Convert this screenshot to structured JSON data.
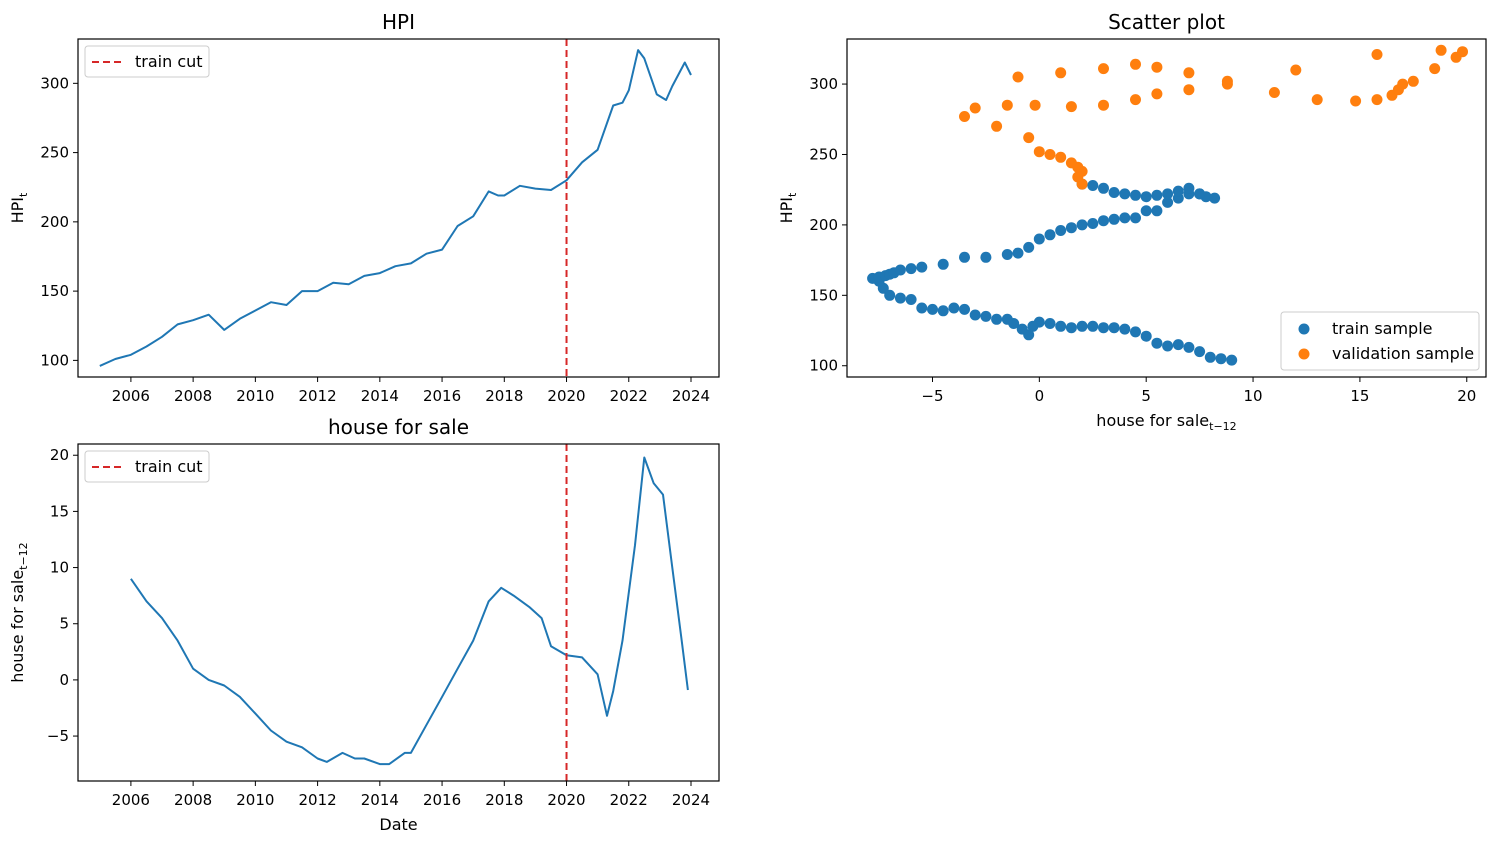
{
  "figure": {
    "panels": [
      "HPI",
      "house for sale",
      "Scatter plot"
    ]
  },
  "colors": {
    "series_blue": "#1f77b4",
    "series_orange": "#ff7f0e",
    "train_cut": "#d62728"
  },
  "chart_data": [
    {
      "type": "line",
      "title": "HPI",
      "xlabel": "",
      "ylabel": "HPI_t",
      "xlim": [
        2004.3,
        2024.9
      ],
      "ylim": [
        88,
        332
      ],
      "x_ticks": [
        "2006",
        "2008",
        "2010",
        "2012",
        "2014",
        "2016",
        "2018",
        "2020",
        "2022",
        "2024"
      ],
      "y_ticks": [
        "100",
        "150",
        "200",
        "250",
        "300"
      ],
      "grid": false,
      "legend": {
        "position": "top-left",
        "entries": [
          "train cut"
        ]
      },
      "vline": {
        "x": 2020.0,
        "name": "train cut",
        "style": "dashed"
      },
      "series": [
        {
          "x": [
            2005.0,
            2005.5,
            2006.0,
            2006.5,
            2007.0,
            2007.5,
            2008.0,
            2008.5,
            2009.0,
            2009.5,
            2010.0,
            2010.5,
            2011.0,
            2011.5,
            2012.0,
            2012.5,
            2013.0,
            2013.5,
            2014.0,
            2014.5,
            2015.0,
            2015.5,
            2016.0,
            2016.5,
            2017.0,
            2017.5,
            2017.8,
            2018.0,
            2018.5,
            2019.0,
            2019.5,
            2020.0,
            2020.5,
            2021.0,
            2021.5,
            2021.8,
            2022.0,
            2022.3,
            2022.5,
            2022.9,
            2023.2,
            2023.4,
            2023.8,
            2024.0
          ],
          "y": [
            96,
            101,
            104,
            110,
            117,
            126,
            129,
            133,
            122,
            130,
            136,
            142,
            140,
            150,
            150,
            156,
            155,
            161,
            163,
            168,
            170,
            177,
            180,
            197,
            204,
            222,
            219,
            219,
            226,
            224,
            223,
            230,
            243,
            252,
            284,
            286,
            295,
            324,
            318,
            292,
            288,
            298,
            315,
            306
          ]
        }
      ]
    },
    {
      "type": "line",
      "title": "house for sale",
      "xlabel": "Date",
      "ylabel": "house for sale_{t-12}",
      "xlim": [
        2004.3,
        2024.9
      ],
      "ylim": [
        -9,
        21
      ],
      "x_ticks": [
        "2006",
        "2008",
        "2010",
        "2012",
        "2014",
        "2016",
        "2018",
        "2020",
        "2022",
        "2024"
      ],
      "y_ticks": [
        "−5",
        "0",
        "5",
        "10",
        "15",
        "20"
      ],
      "grid": false,
      "legend": {
        "position": "top-left",
        "entries": [
          "train cut"
        ]
      },
      "vline": {
        "x": 2020.0,
        "name": "train cut",
        "style": "dashed"
      },
      "series": [
        {
          "x": [
            2006.0,
            2006.5,
            2007.0,
            2007.5,
            2008.0,
            2008.5,
            2009.0,
            2009.5,
            2010.0,
            2010.5,
            2011.0,
            2011.5,
            2012.0,
            2012.3,
            2012.8,
            2013.2,
            2013.5,
            2014.0,
            2014.3,
            2014.8,
            2015.0,
            2015.5,
            2016.0,
            2016.5,
            2017.0,
            2017.5,
            2017.9,
            2018.3,
            2018.8,
            2019.2,
            2019.5,
            2020.0,
            2020.5,
            2021.0,
            2021.3,
            2021.5,
            2021.8,
            2022.2,
            2022.5,
            2022.8,
            2023.1,
            2023.4,
            2023.7,
            2023.9
          ],
          "y": [
            9,
            7,
            5.5,
            3.5,
            1,
            0,
            -0.5,
            -1.5,
            -3,
            -4.5,
            -5.5,
            -6,
            -7,
            -7.3,
            -6.5,
            -7,
            -7,
            -7.5,
            -7.5,
            -6.5,
            -6.5,
            -4,
            -1.5,
            1,
            3.5,
            7,
            8.2,
            7.5,
            6.5,
            5.5,
            3,
            2.2,
            2,
            0.5,
            -3.2,
            -1,
            3.5,
            12,
            19.8,
            17.5,
            16.5,
            10,
            3.5,
            -0.9
          ]
        }
      ]
    },
    {
      "type": "scatter",
      "title": "Scatter plot",
      "xlabel": "house for sale_{t-12}",
      "ylabel": "HPI_t",
      "xlim": [
        -9,
        20.9
      ],
      "ylim": [
        92,
        332
      ],
      "x_ticks": [
        "−5",
        "0",
        "5",
        "10",
        "15",
        "20"
      ],
      "y_ticks": [
        "100",
        "150",
        "200",
        "250",
        "300"
      ],
      "grid": false,
      "legend": {
        "position": "bottom-right",
        "entries": [
          "train sample",
          "validation sample"
        ]
      },
      "series": [
        {
          "name": "train sample",
          "points": [
            [
              9,
              104
            ],
            [
              8.5,
              105
            ],
            [
              8,
              106
            ],
            [
              7.5,
              110
            ],
            [
              7,
              113
            ],
            [
              6.5,
              115
            ],
            [
              6,
              114
            ],
            [
              5.5,
              116
            ],
            [
              5,
              121
            ],
            [
              4.5,
              124
            ],
            [
              4,
              126
            ],
            [
              3.5,
              127
            ],
            [
              3,
              127
            ],
            [
              2.5,
              128
            ],
            [
              2,
              128
            ],
            [
              1.5,
              127
            ],
            [
              1,
              128
            ],
            [
              0.5,
              130
            ],
            [
              0,
              131
            ],
            [
              -0.3,
              128
            ],
            [
              -0.5,
              122
            ],
            [
              -0.8,
              126
            ],
            [
              -1.2,
              130
            ],
            [
              -1.5,
              133
            ],
            [
              -2,
              133
            ],
            [
              -2.5,
              135
            ],
            [
              -3,
              136
            ],
            [
              -3.5,
              140
            ],
            [
              -4,
              141
            ],
            [
              -4.5,
              139
            ],
            [
              -5,
              140
            ],
            [
              -5.5,
              141
            ],
            [
              -6,
              147
            ],
            [
              -6.5,
              148
            ],
            [
              -7,
              150
            ],
            [
              -7.3,
              155
            ],
            [
              -7.5,
              160
            ],
            [
              -7.8,
              162
            ],
            [
              -7.5,
              163
            ],
            [
              -7.2,
              164
            ],
            [
              -7,
              165
            ],
            [
              -6.8,
              166
            ],
            [
              -6.5,
              168
            ],
            [
              -6,
              169
            ],
            [
              -5.5,
              170
            ],
            [
              -4.5,
              172
            ],
            [
              -3.5,
              177
            ],
            [
              -2.5,
              177
            ],
            [
              -1.5,
              179
            ],
            [
              -1,
              180
            ],
            [
              -0.5,
              184
            ],
            [
              0,
              190
            ],
            [
              0.5,
              193
            ],
            [
              1,
              196
            ],
            [
              1.5,
              198
            ],
            [
              2,
              200
            ],
            [
              2.5,
              201
            ],
            [
              3,
              203
            ],
            [
              3.5,
              204
            ],
            [
              4,
              205
            ],
            [
              4.5,
              205
            ],
            [
              5,
              210
            ],
            [
              5.5,
              210
            ],
            [
              6,
              216
            ],
            [
              6.5,
              219
            ],
            [
              7,
              222
            ],
            [
              7.5,
              222
            ],
            [
              7.8,
              220
            ],
            [
              8.2,
              219
            ],
            [
              7.5,
              222
            ],
            [
              7,
              226
            ],
            [
              6.5,
              224
            ],
            [
              6,
              222
            ],
            [
              5.5,
              221
            ],
            [
              5,
              220
            ],
            [
              4.5,
              221
            ],
            [
              4,
              222
            ],
            [
              3.5,
              223
            ],
            [
              3,
              226
            ],
            [
              2.5,
              228
            ],
            [
              2,
              229
            ]
          ]
        },
        {
          "name": "validation sample",
          "points": [
            [
              2,
              229
            ],
            [
              1.8,
              234
            ],
            [
              2,
              238
            ],
            [
              1.8,
              241
            ],
            [
              1.5,
              244
            ],
            [
              1,
              248
            ],
            [
              0.5,
              250
            ],
            [
              0,
              252
            ],
            [
              -0.5,
              262
            ],
            [
              -2,
              270
            ],
            [
              -3.5,
              277
            ],
            [
              -3,
              283
            ],
            [
              -1.5,
              285
            ],
            [
              -1,
              305
            ],
            [
              -0.2,
              285
            ],
            [
              1,
              308
            ],
            [
              1.5,
              284
            ],
            [
              3,
              311
            ],
            [
              3,
              285
            ],
            [
              4.5,
              314
            ],
            [
              4.5,
              289
            ],
            [
              5.5,
              312
            ],
            [
              5.5,
              293
            ],
            [
              7,
              308
            ],
            [
              7,
              296
            ],
            [
              8.8,
              300
            ],
            [
              8.8,
              302
            ],
            [
              11,
              294
            ],
            [
              12,
              310
            ],
            [
              13,
              289
            ],
            [
              14.8,
              288
            ],
            [
              15.8,
              289
            ],
            [
              15.8,
              321
            ],
            [
              16.5,
              292
            ],
            [
              16.8,
              296
            ],
            [
              17,
              300
            ],
            [
              17.5,
              302
            ],
            [
              18.5,
              311
            ],
            [
              18.8,
              324
            ],
            [
              19.5,
              319
            ],
            [
              19.8,
              323
            ]
          ]
        }
      ]
    }
  ]
}
